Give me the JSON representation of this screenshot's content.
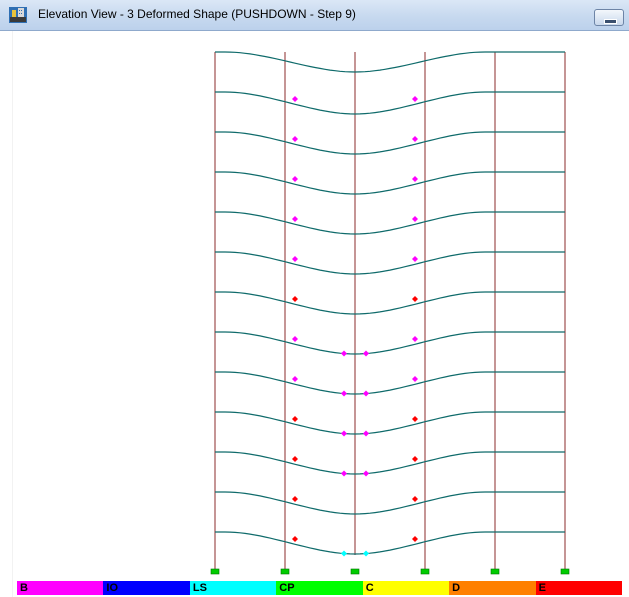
{
  "window": {
    "title": "Elevation View - 3  Deformed Shape (PUSHDOWN - Step 9)",
    "icon": "sap-structure-icon"
  },
  "legend": [
    {
      "label": "B",
      "color": "#ff00ff"
    },
    {
      "label": "IO",
      "color": "#0000ff"
    },
    {
      "label": "LS",
      "color": "#00ffff"
    },
    {
      "label": "CP",
      "color": "#00ff00"
    },
    {
      "label": "C",
      "color": "#ffff00"
    },
    {
      "label": "D",
      "color": "#ff8000"
    },
    {
      "label": "E",
      "color": "#ff0000"
    }
  ],
  "colors": {
    "beam": "#0f6b6b",
    "column": "#8b2b2b",
    "support": "#00cc00"
  },
  "frame": {
    "stories": 13,
    "column_lines": 6,
    "hinges": [
      {
        "story": 1,
        "col": 1,
        "state": "B"
      },
      {
        "story": 1,
        "col": 4,
        "state": "B"
      },
      {
        "story": 2,
        "col": 1,
        "state": "B"
      },
      {
        "story": 2,
        "col": 4,
        "state": "B"
      },
      {
        "story": 3,
        "col": 1,
        "state": "B"
      },
      {
        "story": 3,
        "col": 4,
        "state": "B"
      },
      {
        "story": 4,
        "col": 1,
        "state": "B"
      },
      {
        "story": 4,
        "col": 4,
        "state": "B"
      },
      {
        "story": 5,
        "col": 1,
        "state": "B"
      },
      {
        "story": 5,
        "col": 4,
        "state": "B"
      },
      {
        "story": 6,
        "col": 1,
        "state": "E"
      },
      {
        "story": 6,
        "col": 4,
        "state": "E"
      },
      {
        "story": 7,
        "col": 1,
        "state": "B"
      },
      {
        "story": 7,
        "col": 4,
        "state": "B"
      },
      {
        "story": 7,
        "col": 2,
        "state": "B"
      },
      {
        "story": 7,
        "col": 3,
        "state": "B"
      },
      {
        "story": 8,
        "col": 1,
        "state": "B"
      },
      {
        "story": 8,
        "col": 4,
        "state": "B"
      },
      {
        "story": 8,
        "col": 2,
        "state": "B"
      },
      {
        "story": 8,
        "col": 3,
        "state": "B"
      },
      {
        "story": 9,
        "col": 1,
        "state": "E"
      },
      {
        "story": 9,
        "col": 4,
        "state": "E"
      },
      {
        "story": 9,
        "col": 2,
        "state": "B"
      },
      {
        "story": 9,
        "col": 3,
        "state": "B"
      },
      {
        "story": 10,
        "col": 1,
        "state": "E"
      },
      {
        "story": 10,
        "col": 4,
        "state": "E"
      },
      {
        "story": 10,
        "col": 2,
        "state": "B"
      },
      {
        "story": 10,
        "col": 3,
        "state": "B"
      },
      {
        "story": 11,
        "col": 1,
        "state": "E"
      },
      {
        "story": 11,
        "col": 4,
        "state": "E"
      },
      {
        "story": 12,
        "col": 1,
        "state": "E"
      },
      {
        "story": 12,
        "col": 4,
        "state": "E"
      },
      {
        "story": 12,
        "col": 2,
        "state": "LS"
      },
      {
        "story": 12,
        "col": 3,
        "state": "LS"
      }
    ]
  }
}
